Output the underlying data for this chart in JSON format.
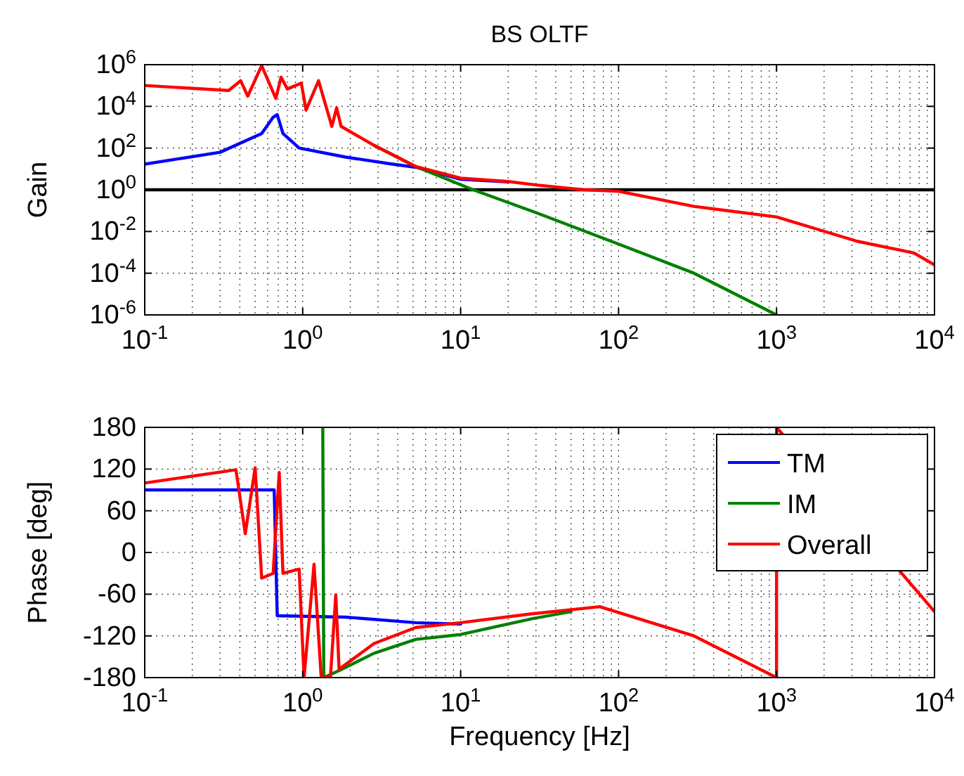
{
  "chart_data": [
    {
      "type": "line",
      "title": "BS OLTF",
      "ylabel": "Gain",
      "log": "xy",
      "grid": true,
      "legend": false,
      "xlim": [
        0.1,
        10000
      ],
      "xticks": [
        {
          "value": 0.1,
          "label": "10$^{-1}$"
        },
        {
          "value": 1,
          "label": "10$^{0}$"
        },
        {
          "value": 10,
          "label": "10$^{1}$"
        },
        {
          "value": 100,
          "label": "10$^{2}$"
        },
        {
          "value": 1000,
          "label": "10$^{3}$"
        },
        {
          "value": 10000,
          "label": "10$^{4}$"
        }
      ],
      "ylim": [
        1e-06,
        1000000
      ],
      "yticks": [
        {
          "value": 1e-06,
          "label": "10$^{-6}$"
        },
        {
          "value": 0.0001,
          "label": "10$^{-4}$"
        },
        {
          "value": 0.01,
          "label": "10$^{-2}$"
        },
        {
          "value": 1,
          "label": "10$^{0}$"
        },
        {
          "value": 100,
          "label": "10$^{2}$"
        },
        {
          "value": 10000,
          "label": "10$^{4}$"
        },
        {
          "value": 1000000,
          "label": "10$^{6}$"
        }
      ],
      "ref_lines": [
        {
          "axis": "y",
          "value": 1,
          "color": "#000000"
        }
      ],
      "series": [
        {
          "color": "#0000ff",
          "x": [
            0.1,
            0.3,
            0.55,
            0.65,
            0.69,
            0.75,
            0.95,
            1.87,
            3.7,
            5.2,
            10,
            20
          ],
          "values": [
            17,
            63,
            500,
            3000,
            4000,
            500,
            100,
            37,
            17,
            12,
            3.2,
            2.4
          ]
        },
        {
          "color": "#008000",
          "x": [
            2.83,
            5.2,
            12,
            30,
            100,
            300,
            1000
          ],
          "values": [
            135,
            13,
            1,
            0.08,
            0.0025,
            0.0001,
            1e-06
          ]
        },
        {
          "color": "#ff0000",
          "x": [
            0.1,
            0.34,
            0.405,
            0.449,
            0.55,
            0.676,
            0.73,
            0.8,
            0.98,
            1.05,
            1.26,
            1.53,
            1.64,
            1.75,
            2.83,
            5.2,
            10,
            20,
            30,
            60,
            100,
            300,
            1000,
            3240,
            7400,
            10000
          ],
          "values": [
            100000,
            58000,
            170000,
            31000,
            900000,
            24000,
            250000,
            68000,
            130000,
            6600,
            170000,
            1100,
            8500,
            1100,
            135,
            13,
            3.6,
            2.5,
            1.7,
            1,
            0.85,
            0.16,
            0.05,
            0.0034,
            0.00093,
            0.00025
          ]
        }
      ]
    },
    {
      "type": "line",
      "xlabel": "Frequency [Hz]",
      "ylabel": "Phase [deg]",
      "log": "x",
      "grid": true,
      "legend": "top right",
      "xlim": [
        0.1,
        10000
      ],
      "xticks": [
        {
          "value": 0.1,
          "label": "10$^{-1}$"
        },
        {
          "value": 1,
          "label": "10$^{0}$"
        },
        {
          "value": 10,
          "label": "10$^{1}$"
        },
        {
          "value": 100,
          "label": "10$^{2}$"
        },
        {
          "value": 1000,
          "label": "10$^{3}$"
        },
        {
          "value": 10000,
          "label": "10$^{4}$"
        }
      ],
      "ylim": [
        -180,
        180
      ],
      "yticks": [
        -180,
        -120,
        -60,
        0,
        60,
        120,
        180
      ],
      "series": [
        {
          "name": "TM",
          "color": "#0000ff",
          "x": [
            0.1,
            0.66,
            0.69,
            1.87,
            5.2,
            10
          ],
          "values": [
            90,
            90,
            -91,
            -93,
            -101,
            -103
          ]
        },
        {
          "name": "IM",
          "color": "#008000",
          "x": [
            1.34,
            1.36,
            1.7,
            2.83,
            5.2,
            10,
            28.8,
            50
          ],
          "values": [
            180,
            -180,
            -170,
            -145,
            -125,
            -118,
            -95,
            -85
          ]
        },
        {
          "name": "Overall",
          "color": "#ff0000",
          "x": [
            0.1,
            0.378,
            0.433,
            0.5,
            0.55,
            0.65,
            0.71,
            0.75,
            0.95,
            1.02,
            1.18,
            1.31,
            1.5,
            1.62,
            1.7,
            2.83,
            5.2,
            10,
            28.8,
            76,
            300,
            1000,
            1001,
            10000
          ],
          "values": [
            100,
            119,
            27,
            122,
            -37,
            -30,
            115,
            -30,
            -24,
            -180,
            -17,
            -180,
            -178,
            -61,
            -168,
            -131,
            -108,
            -101,
            -88,
            -78,
            -120,
            -180,
            180,
            -85
          ]
        }
      ]
    }
  ]
}
